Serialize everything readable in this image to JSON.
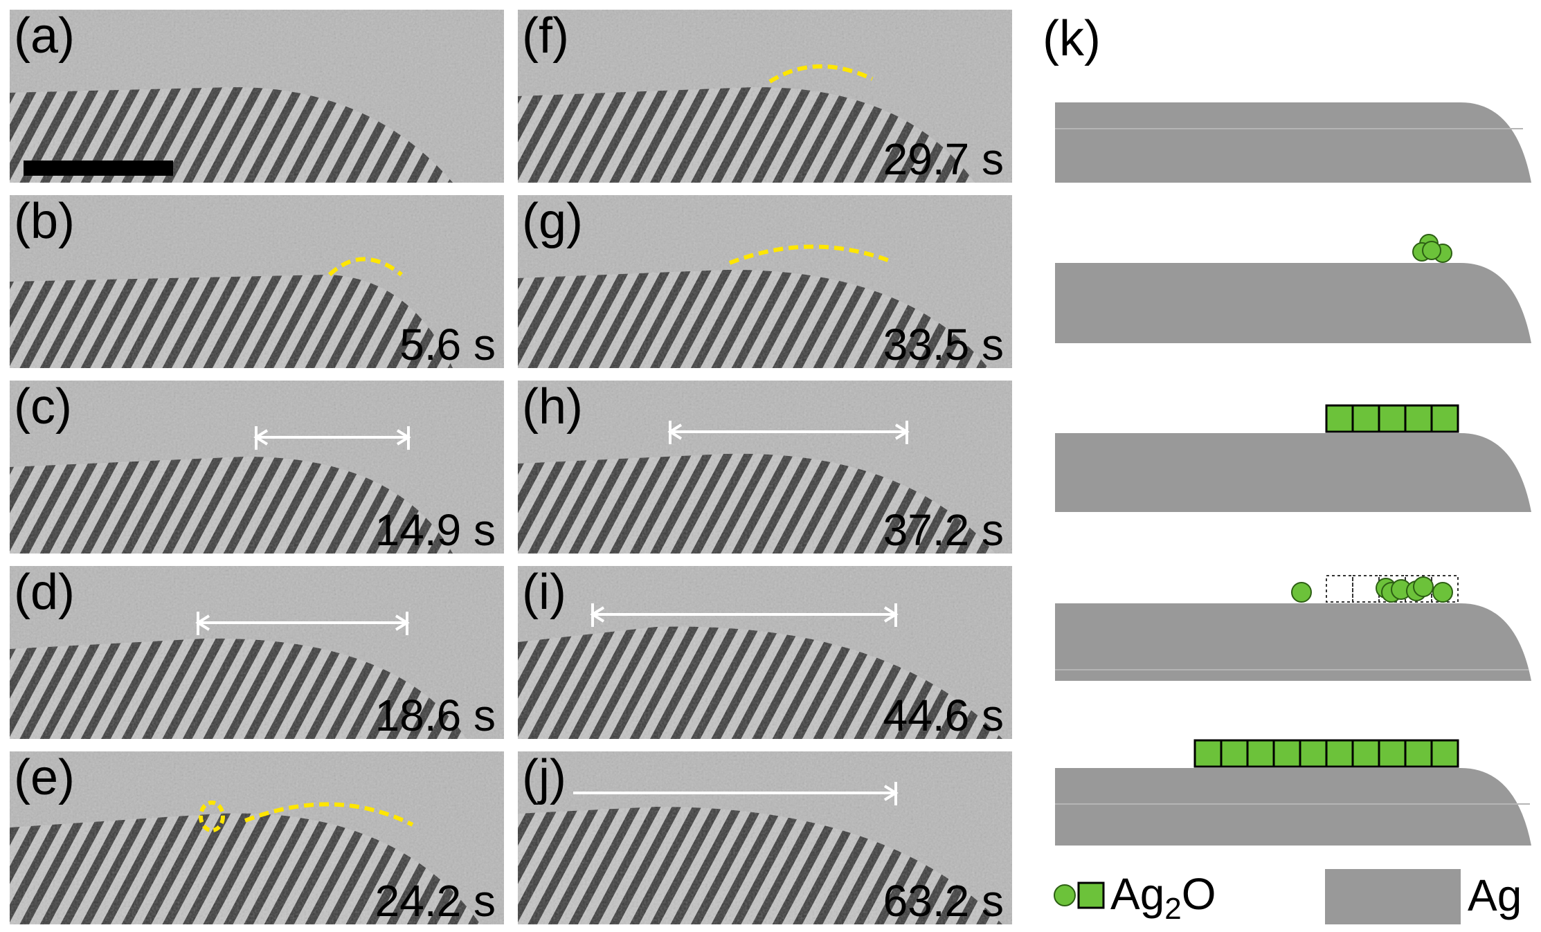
{
  "panels": [
    {
      "label": "(a)",
      "time": ""
    },
    {
      "label": "(b)",
      "time": "5.6 s"
    },
    {
      "label": "(c)",
      "time": "14.9 s"
    },
    {
      "label": "(d)",
      "time": "18.6 s"
    },
    {
      "label": "(e)",
      "time": "24.2 s"
    },
    {
      "label": "(f)",
      "time": "29.7 s"
    },
    {
      "label": "(g)",
      "time": "33.5 s"
    },
    {
      "label": "(h)",
      "time": "37.2 s"
    },
    {
      "label": "(i)",
      "time": "44.6 s"
    },
    {
      "label": "(j)",
      "time": "63.2 s"
    }
  ],
  "schematic": {
    "label": "(k)",
    "oxide_legend": "Ag",
    "oxide_legend_sub": "2",
    "oxide_legend_tail": "O",
    "metal_legend": "Ag"
  },
  "colors": {
    "oxide": "#6cc23a",
    "metal": "#999999",
    "annotation_yellow": "#ffe600",
    "arrow_white": "#ffffff"
  }
}
